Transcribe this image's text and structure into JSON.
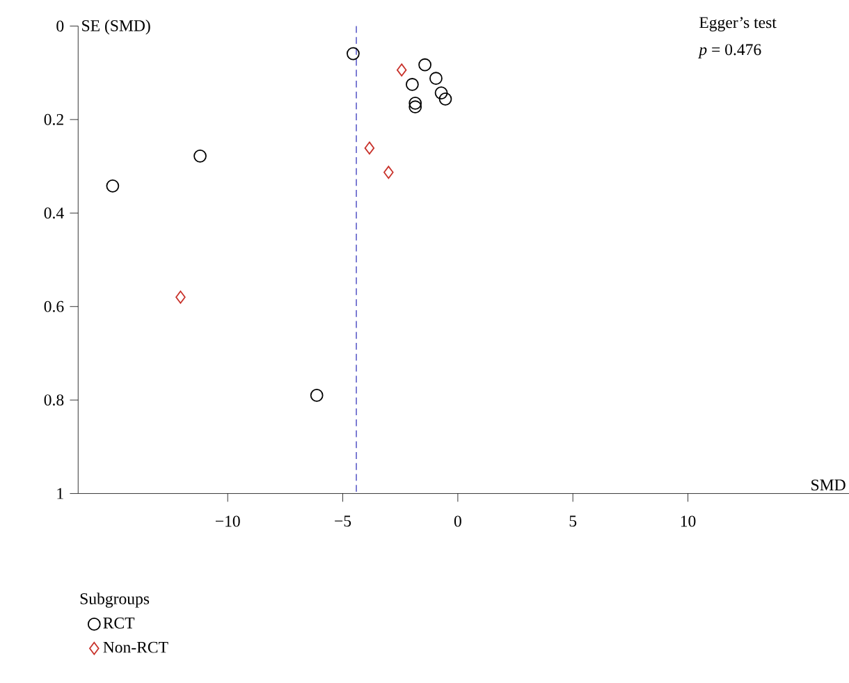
{
  "chart_data": {
    "type": "scatter",
    "xlabel": "SMD",
    "ylabel": "SE (SMD)",
    "legend_title": "Subgroups",
    "annotations": [
      "Egger’s test",
      "*p* = 0.476"
    ],
    "xlim": [
      -16.5,
      17
    ],
    "ylim": [
      1,
      0
    ],
    "xticks": [
      {
        "value": -10,
        "label": "−10"
      },
      {
        "value": -5,
        "label": "−5"
      },
      0,
      5,
      10
    ],
    "yticks": [
      0,
      0.2,
      0.4,
      0.6,
      0.8,
      1
    ],
    "ref_lines": [
      {
        "axis": "x",
        "value": -4.41,
        "color": "#5b5bc8",
        "line_style": "dashed"
      }
    ],
    "legend": "bottom",
    "grid": false,
    "series": [
      {
        "name": "RCT",
        "color": "#000000",
        "marker": "circle",
        "x": [
          -4.55,
          -1.43,
          -1.98,
          -0.95,
          -0.72,
          -0.54,
          -1.85,
          -1.85,
          -11.2,
          -15.0,
          -6.13
        ],
        "values": [
          0.059,
          0.083,
          0.125,
          0.112,
          0.143,
          0.156,
          0.165,
          0.173,
          0.278,
          0.342,
          0.79
        ]
      },
      {
        "name": "Non-RCT",
        "color": "#c8312a",
        "marker": "diamond",
        "x": [
          -2.44,
          -3.84,
          -3.01,
          -12.05
        ],
        "values": [
          0.094,
          0.261,
          0.313,
          0.58
        ]
      }
    ]
  }
}
